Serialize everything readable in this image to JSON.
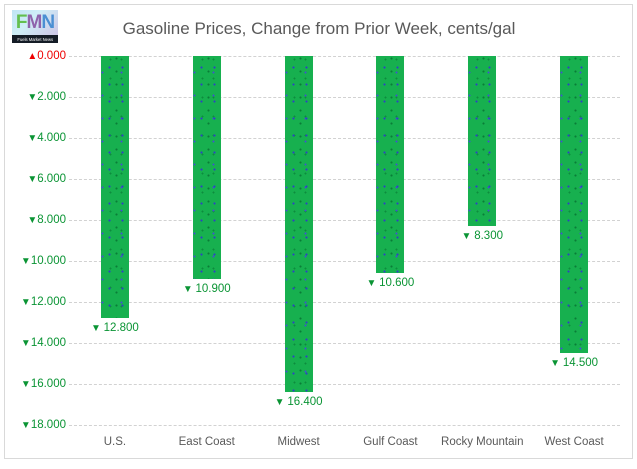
{
  "logo": {
    "letters": [
      "F",
      "M",
      "N"
    ],
    "tagline": "Fuels Market News"
  },
  "colors": {
    "bar_green": "#17b04f",
    "speckle_blue": "#2e41c6",
    "speckle_dark_green": "#0a7d37",
    "label_green": "#0a9434",
    "zero_red": "#ee0000",
    "text_gray": "#595959",
    "grid_gray": "#d2d2d2"
  },
  "chart_data": {
    "type": "bar",
    "title": "Gasoline Prices, Change from Prior Week, cents/gal",
    "orientation": "downward_from_zero",
    "grid": true,
    "legend": false,
    "ylim": [
      0,
      18
    ],
    "y_tick_step": 2,
    "categories": [
      "U.S.",
      "East Coast",
      "Midwest",
      "Gulf Coast",
      "Rocky Mountain",
      "West Coast"
    ],
    "values": [
      12.8,
      10.9,
      16.4,
      10.6,
      8.3,
      14.5
    ],
    "value_labels": [
      "12.800",
      "10.900",
      "16.400",
      "10.600",
      "8.300",
      "14.500"
    ],
    "value_label_prefix": "▼",
    "y_ticks": [
      {
        "value": 0,
        "label": "0.000",
        "prefix": "▲",
        "color": "#ee0000"
      },
      {
        "value": 2,
        "label": "2.000",
        "prefix": "▼",
        "color": "#0a9434"
      },
      {
        "value": 4,
        "label": "4.000",
        "prefix": "▼",
        "color": "#0a9434"
      },
      {
        "value": 6,
        "label": "6.000",
        "prefix": "▼",
        "color": "#0a9434"
      },
      {
        "value": 8,
        "label": "8.000",
        "prefix": "▼",
        "color": "#0a9434"
      },
      {
        "value": 10,
        "label": "10.000",
        "prefix": "▼",
        "color": "#0a9434"
      },
      {
        "value": 12,
        "label": "12.000",
        "prefix": "▼",
        "color": "#0a9434"
      },
      {
        "value": 14,
        "label": "14.000",
        "prefix": "▼",
        "color": "#0a9434"
      },
      {
        "value": 16,
        "label": "16.000",
        "prefix": "▼",
        "color": "#0a9434"
      },
      {
        "value": 18,
        "label": "18.000",
        "prefix": "▼",
        "color": "#0a9434"
      }
    ]
  }
}
